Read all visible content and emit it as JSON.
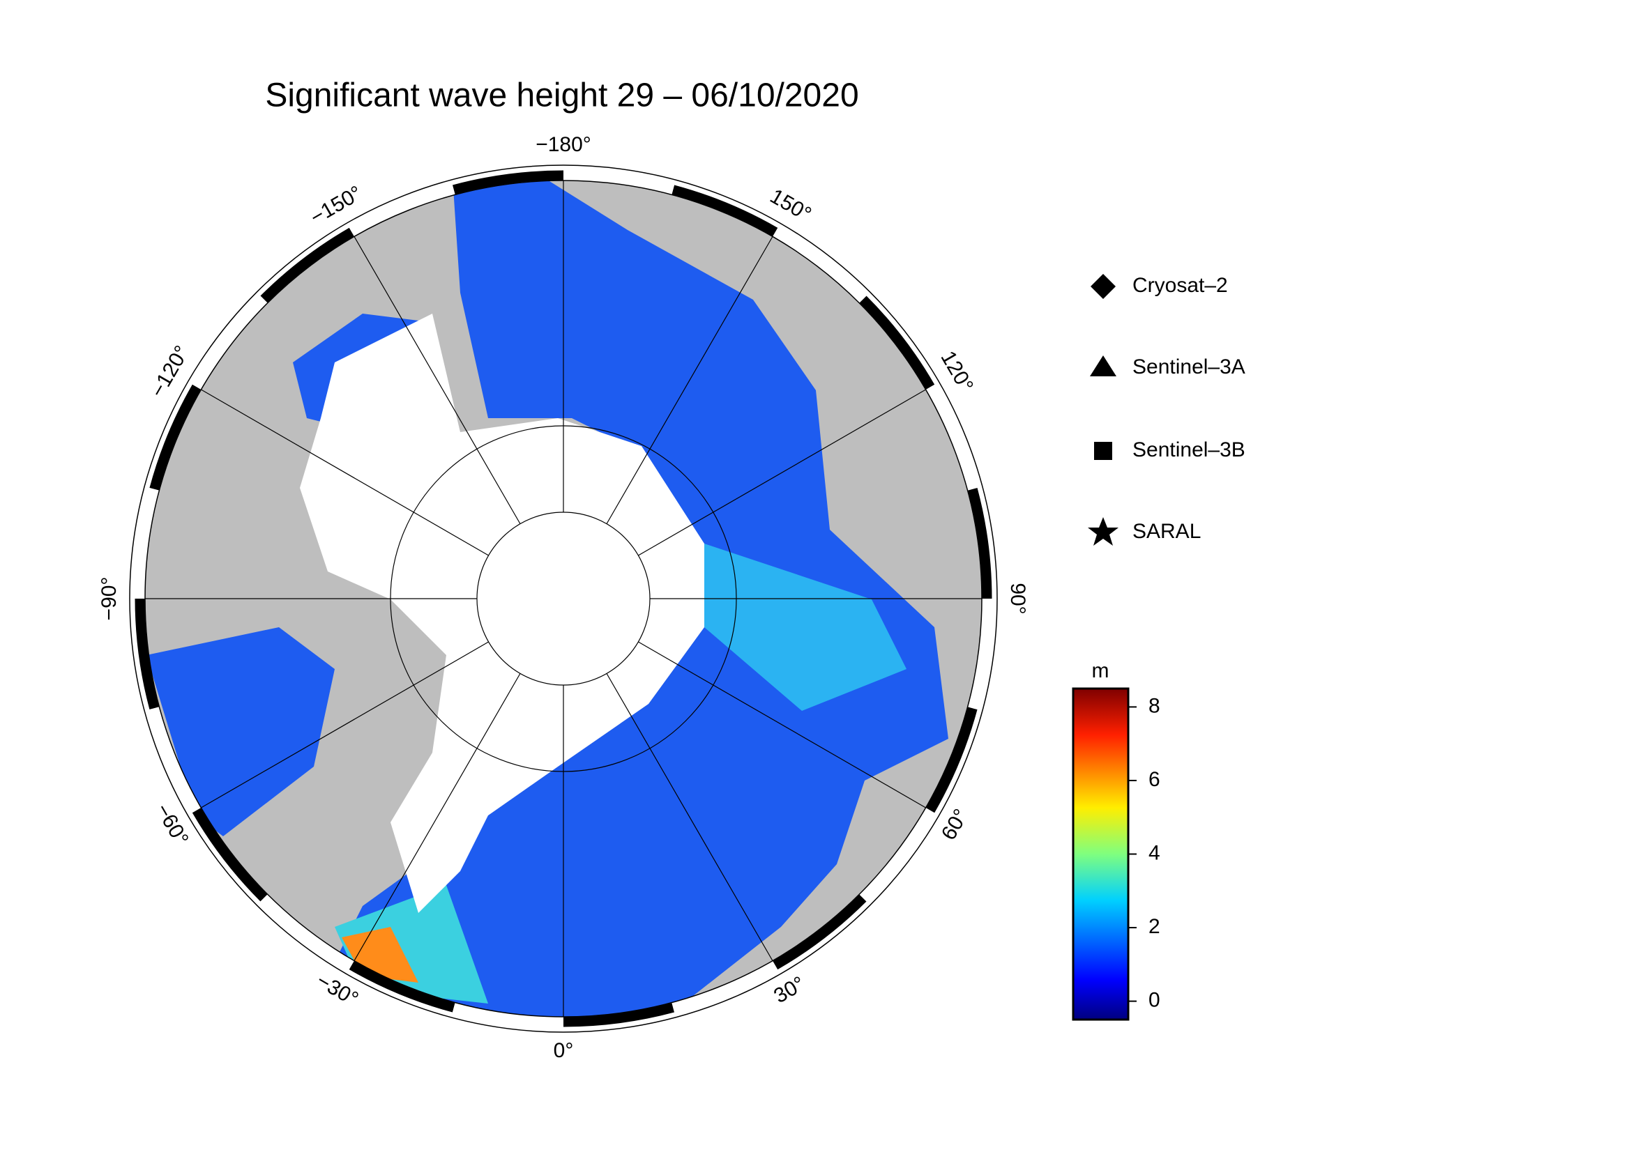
{
  "title": "Significant wave height 29 – 06/10/2020",
  "map": {
    "lon_ticks": [
      {
        "value": -180,
        "label": "−180°"
      },
      {
        "value": -150,
        "label": "−150°"
      },
      {
        "value": -120,
        "label": "−120°"
      },
      {
        "value": -90,
        "label": "−90°"
      },
      {
        "value": -60,
        "label": "−60°"
      },
      {
        "value": -30,
        "label": "−30°"
      },
      {
        "value": 0,
        "label": "0°"
      },
      {
        "value": 30,
        "label": "30°"
      },
      {
        "value": 60,
        "label": "60°"
      },
      {
        "value": 90,
        "label": "90°"
      },
      {
        "value": 120,
        "label": "120°"
      },
      {
        "value": 150,
        "label": "150°"
      }
    ]
  },
  "legend": [
    "Cryosat–2",
    "Sentinel–3A",
    "Sentinel–3B",
    "SARAL"
  ],
  "colorbar": {
    "label": "m",
    "lim": [
      -0.5,
      8.5
    ],
    "ticks": [
      0,
      2,
      4,
      6,
      8
    ]
  }
}
